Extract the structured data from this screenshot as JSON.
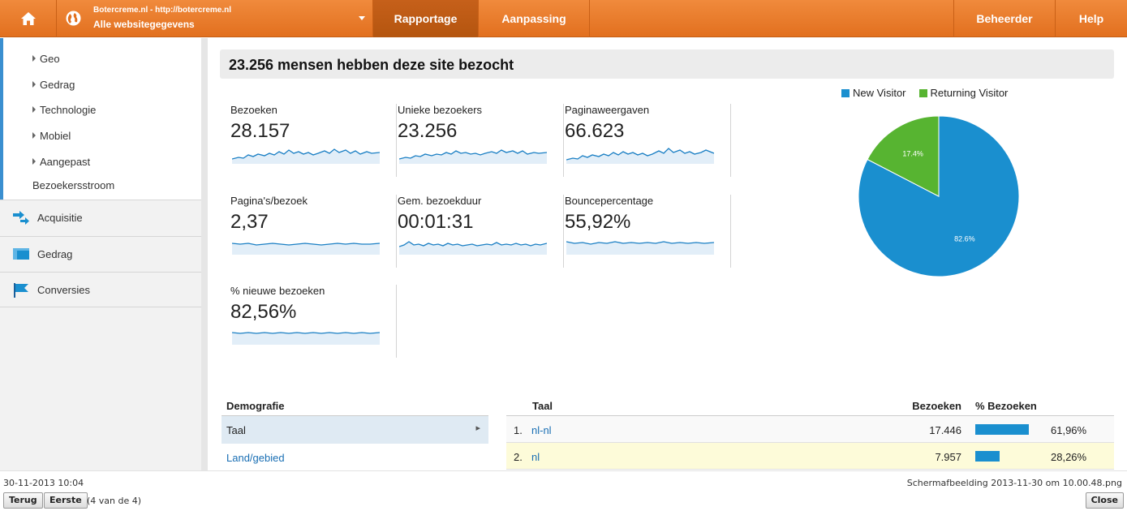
{
  "topbar": {
    "site_url": "Botercreme.nl - http://botercreme.nl",
    "site_property": "Alle websitegegevens",
    "tabs": [
      {
        "label": "Rapportage"
      },
      {
        "label": "Aanpassing"
      },
      {
        "label": "Beheerder"
      },
      {
        "label": "Help"
      }
    ],
    "accent_color": "#e9782b"
  },
  "sidebar": {
    "sub_items": [
      {
        "label": "Geo"
      },
      {
        "label": "Gedrag"
      },
      {
        "label": "Technologie"
      },
      {
        "label": "Mobiel"
      },
      {
        "label": "Aangepast"
      }
    ],
    "flow_label": "Bezoekersstroom",
    "sections": [
      {
        "label": "Acquisitie",
        "icon": "acquisition-arrow-icon"
      },
      {
        "label": "Gedrag",
        "icon": "behavior-icon"
      },
      {
        "label": "Conversies",
        "icon": "flag-icon"
      }
    ]
  },
  "main": {
    "headline": "23.256 mensen hebben deze site bezocht",
    "metrics": [
      {
        "label": "Bezoeken",
        "value": "28.157"
      },
      {
        "label": "Unieke bezoekers",
        "value": "23.256"
      },
      {
        "label": "Paginaweergaven",
        "value": "66.623"
      },
      {
        "label": "Pagina's/bezoek",
        "value": "2,37"
      },
      {
        "label": "Gem. bezoekduur",
        "value": "00:01:31"
      },
      {
        "label": "Bouncepercentage",
        "value": "55,92%"
      },
      {
        "label": "% nieuwe bezoeken",
        "value": "82,56%"
      }
    ]
  },
  "chart_data": {
    "type": "pie",
    "categories": [
      "New Visitor",
      "Returning Visitor"
    ],
    "values": [
      82.6,
      17.4
    ],
    "labels": [
      "82.6%",
      "17.4%"
    ],
    "colors": [
      "#1a8fcf",
      "#57b431"
    ],
    "legend": "top"
  },
  "demographics": {
    "header": "Demografie",
    "rows": [
      {
        "label": "Taal"
      },
      {
        "label": "Land/gebied"
      }
    ]
  },
  "language_table": {
    "col_language": "Taal",
    "col_visits": "Bezoeken",
    "col_pct": "% Bezoeken",
    "rows": [
      {
        "rank": "1.",
        "language": "nl-nl",
        "visits": "17.446",
        "pct": "61,96%",
        "share": 0.6196
      },
      {
        "rank": "2.",
        "language": "nl",
        "visits": "7.957",
        "pct": "28,26%",
        "share": 0.2826
      }
    ]
  },
  "footer": {
    "date": "30-11-2013 10:04",
    "filename": "Schermafbeelding 2013-11-30 om 10.00.48.png",
    "back_label": "Terug",
    "first_label": "Eerste",
    "count": "(4 van de 4)",
    "close_label": "Close"
  }
}
